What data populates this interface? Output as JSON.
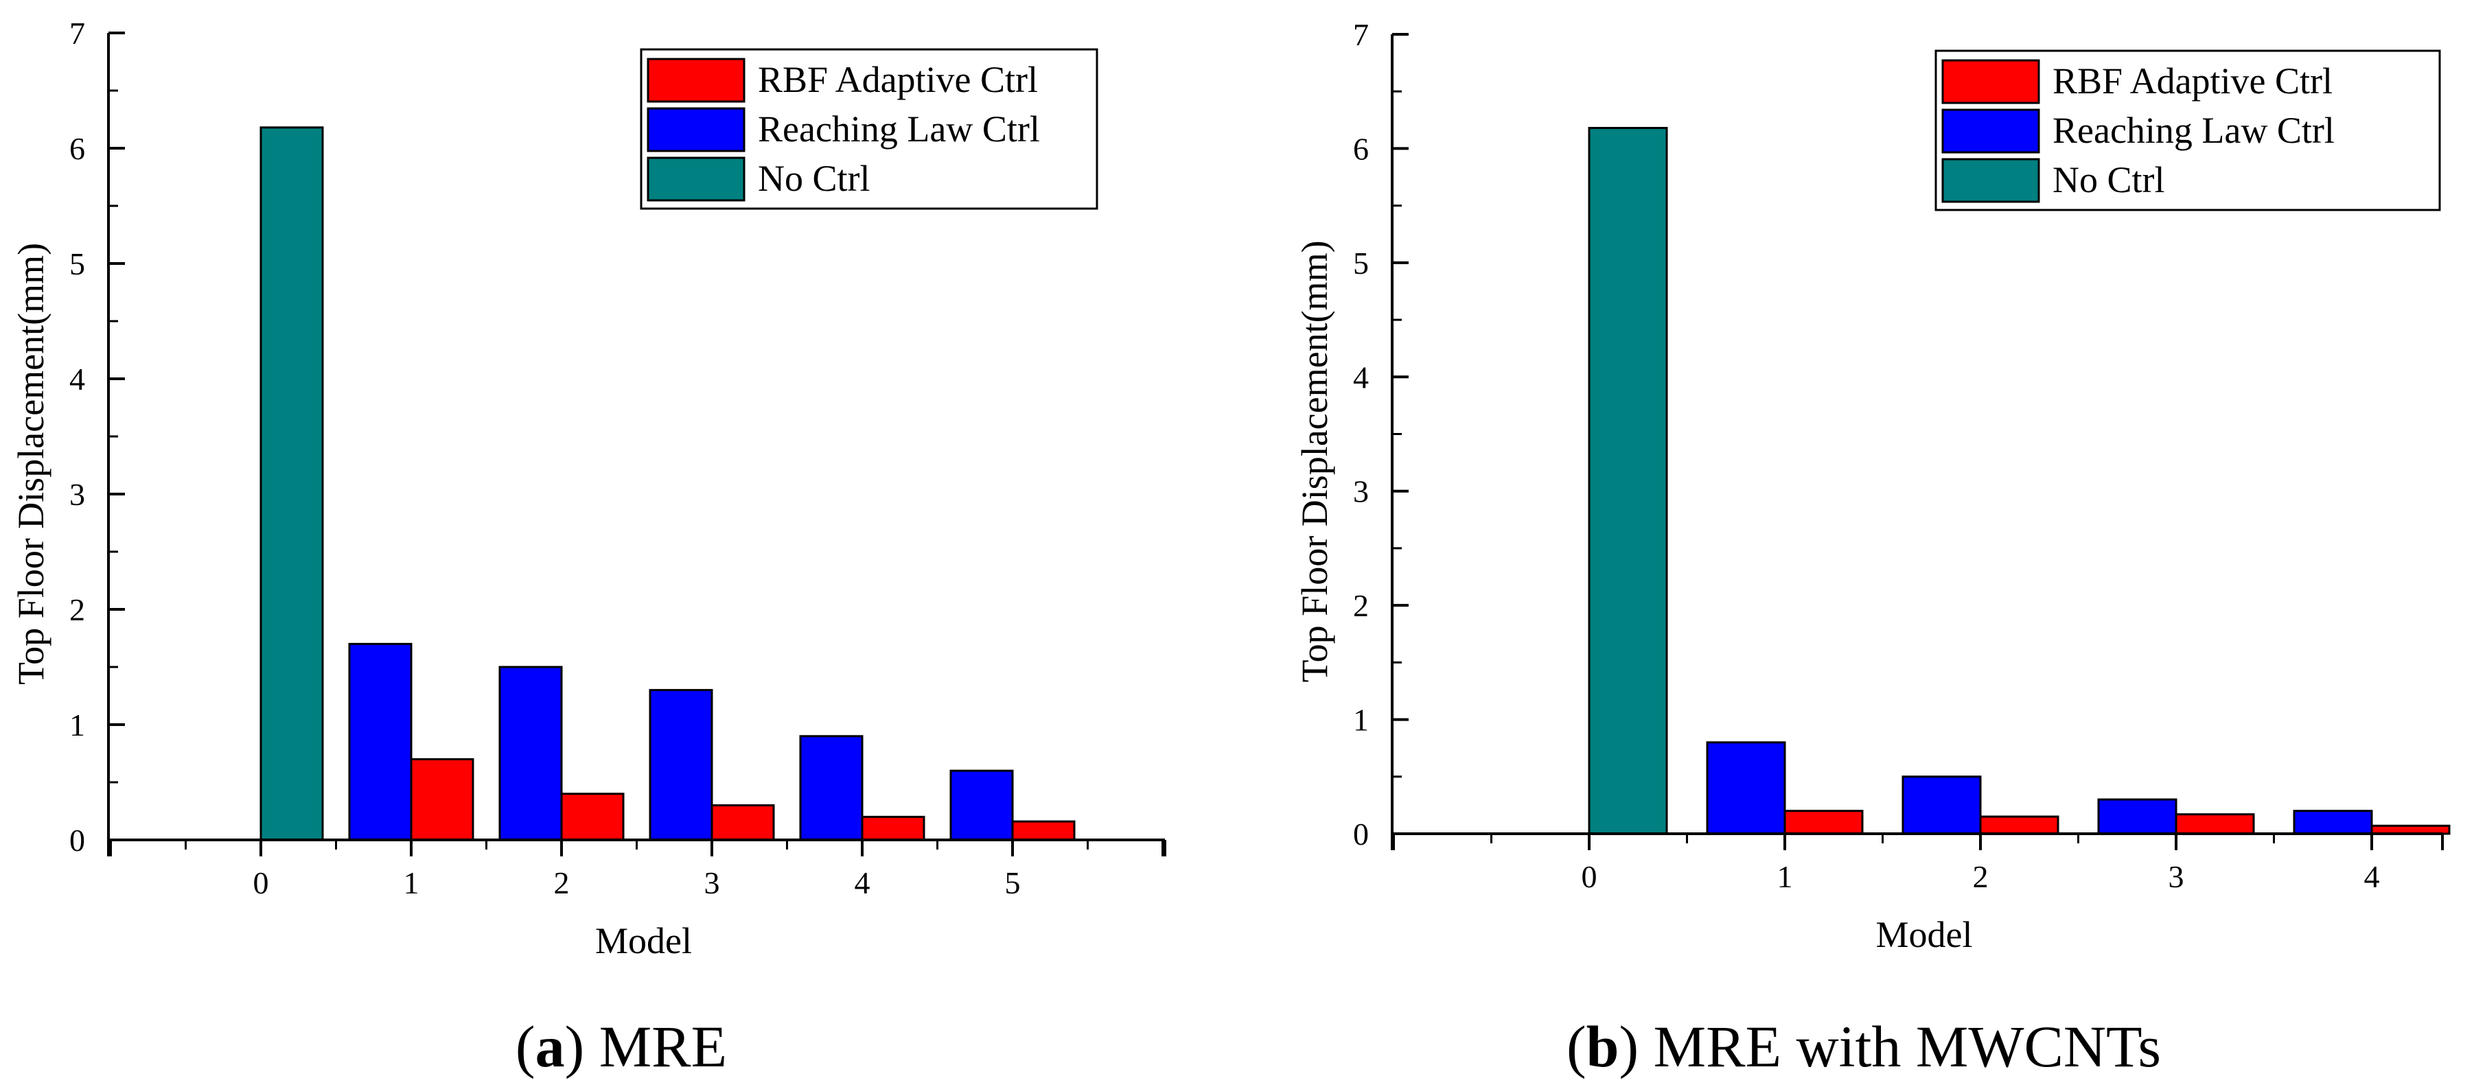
{
  "chart_data": [
    {
      "type": "bar",
      "caption_letter": "a",
      "caption_open": "(",
      "caption_close": ")",
      "caption_text": " MRE",
      "xlabel": "Model",
      "ylabel": "Top Floor Displacement(mm)",
      "ylim": [
        0,
        7
      ],
      "yticks": [
        0,
        1,
        2,
        3,
        4,
        5,
        6,
        7
      ],
      "categories": [
        "0",
        "1",
        "2",
        "3",
        "4",
        "5"
      ],
      "legend_position": "top-right",
      "series": [
        {
          "name": "RBF Adaptive Ctrl",
          "color": "#ff0000",
          "values": [
            null,
            0.7,
            0.4,
            0.3,
            0.2,
            0.16
          ]
        },
        {
          "name": "Reaching Law Ctrl",
          "color": "#0000ff",
          "values": [
            null,
            1.7,
            1.5,
            1.3,
            0.9,
            0.6
          ]
        },
        {
          "name": "No Ctrl",
          "color": "#008080",
          "values": [
            6.18,
            null,
            null,
            null,
            null,
            null
          ]
        }
      ]
    },
    {
      "type": "bar",
      "caption_letter": "b",
      "caption_open": "(",
      "caption_close": ")",
      "caption_text": " MRE with MWCNTs",
      "xlabel": "Model",
      "ylabel": "Top Floor Displacement(mm)",
      "ylim": [
        0,
        7
      ],
      "yticks": [
        0,
        1,
        2,
        3,
        4,
        5,
        6,
        7
      ],
      "categories": [
        "0",
        "1",
        "2",
        "3",
        "4"
      ],
      "legend_position": "top-right",
      "series": [
        {
          "name": "RBF Adaptive Ctrl",
          "color": "#ff0000",
          "values": [
            null,
            0.2,
            0.15,
            0.17,
            0.07
          ]
        },
        {
          "name": "Reaching Law Ctrl",
          "color": "#0000ff",
          "values": [
            null,
            0.8,
            0.5,
            0.3,
            0.2
          ]
        },
        {
          "name": "No Ctrl",
          "color": "#008080",
          "values": [
            6.18,
            null,
            null,
            null,
            null
          ]
        }
      ]
    }
  ]
}
